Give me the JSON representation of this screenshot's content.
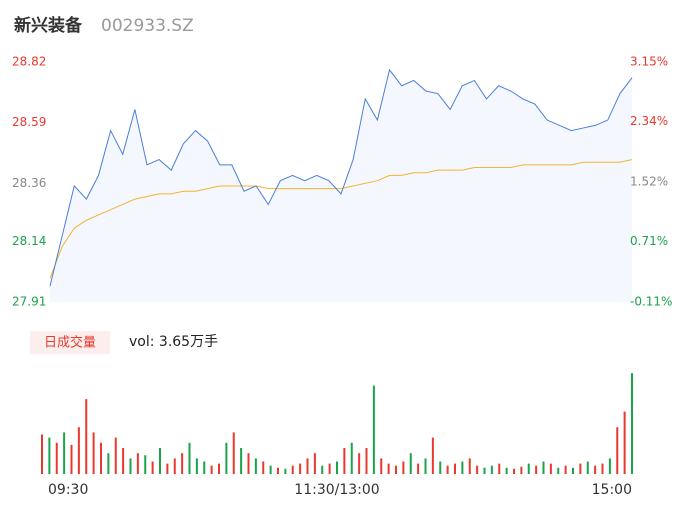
{
  "header": {
    "name": "新兴装备",
    "code": "002933.SZ"
  },
  "chart_data": [
    {
      "type": "line",
      "x": [
        0,
        5,
        10,
        15,
        20,
        25,
        30,
        35,
        40,
        45,
        50,
        55,
        60,
        65,
        70,
        75,
        80,
        85,
        90,
        95,
        100,
        105,
        110,
        115,
        120,
        125,
        130,
        135,
        140,
        145,
        150,
        155,
        160,
        165,
        170,
        175,
        180,
        185,
        190,
        195,
        200,
        205,
        210,
        215,
        220,
        225,
        230,
        235,
        240
      ],
      "series": [
        {
          "name": "price",
          "color": "#4a7fd8",
          "values": [
            27.97,
            28.16,
            28.35,
            28.3,
            28.39,
            28.56,
            28.47,
            28.64,
            28.43,
            28.45,
            28.41,
            28.51,
            28.56,
            28.52,
            28.43,
            28.43,
            28.33,
            28.35,
            28.28,
            28.37,
            28.39,
            28.37,
            28.39,
            28.37,
            28.32,
            28.45,
            28.68,
            28.6,
            28.79,
            28.73,
            28.75,
            28.71,
            28.7,
            28.64,
            28.73,
            28.75,
            28.68,
            28.73,
            28.71,
            28.68,
            28.66,
            28.6,
            28.58,
            28.56,
            28.57,
            28.58,
            28.6,
            28.7,
            28.76
          ]
        },
        {
          "name": "average",
          "color": "#f5b431",
          "values": [
            28.0,
            28.12,
            28.19,
            28.22,
            28.24,
            28.26,
            28.28,
            28.3,
            28.31,
            28.32,
            28.32,
            28.33,
            28.33,
            28.34,
            28.35,
            28.35,
            28.35,
            28.35,
            28.34,
            28.34,
            28.34,
            28.34,
            28.34,
            28.34,
            28.34,
            28.35,
            28.36,
            28.37,
            28.39,
            28.39,
            28.4,
            28.4,
            28.41,
            28.41,
            28.41,
            28.42,
            28.42,
            28.42,
            28.42,
            28.43,
            28.43,
            28.43,
            28.43,
            28.43,
            28.44,
            28.44,
            28.44,
            28.44,
            28.45
          ]
        }
      ],
      "xlim": [
        0,
        240
      ],
      "ylim": [
        27.91,
        28.82
      ],
      "yticks": [
        28.82,
        28.59,
        28.36,
        28.14,
        27.91
      ],
      "ytick_colors": [
        "#e8392e",
        "#e8392e",
        "#888888",
        "#1aa34a",
        "#1aa34a"
      ],
      "y2lim": [
        -0.11,
        3.15
      ],
      "y2ticks": [
        {
          "value": 3.15,
          "label": "3.15%"
        },
        {
          "value": 2.34,
          "label": "2.34%"
        },
        {
          "value": 1.52,
          "label": "1.52%"
        },
        {
          "value": 0.71,
          "label": "0.71%"
        },
        {
          "value": -0.11,
          "label": "-0.11%"
        }
      ],
      "area_color": "#f4f7fd"
    },
    {
      "type": "bar",
      "title": "日成交量",
      "subtitle": "vol: 3.65万手",
      "x": [
        0,
        3,
        6,
        9,
        12,
        15,
        18,
        21,
        24,
        27,
        30,
        33,
        36,
        39,
        42,
        45,
        48,
        51,
        54,
        57,
        60,
        63,
        66,
        69,
        72,
        75,
        78,
        81,
        84,
        87,
        90,
        93,
        96,
        99,
        102,
        105,
        108,
        111,
        114,
        117,
        120,
        123,
        126,
        129,
        132,
        135,
        138,
        141,
        144,
        147,
        150,
        153,
        156,
        159,
        162,
        165,
        168,
        171,
        174,
        177,
        180,
        183,
        186,
        189,
        192,
        195,
        198,
        201,
        204,
        207,
        210,
        213,
        216,
        219,
        222,
        225,
        228,
        231,
        234,
        237,
        240
      ],
      "values": [
        38,
        35,
        30,
        40,
        28,
        45,
        72,
        40,
        30,
        20,
        35,
        25,
        15,
        20,
        18,
        12,
        25,
        10,
        15,
        20,
        30,
        15,
        12,
        8,
        10,
        30,
        40,
        25,
        20,
        15,
        12,
        8,
        6,
        5,
        8,
        10,
        15,
        20,
        8,
        10,
        12,
        25,
        30,
        20,
        25,
        85,
        15,
        10,
        8,
        12,
        20,
        10,
        15,
        35,
        12,
        8,
        10,
        12,
        15,
        8,
        6,
        8,
        10,
        6,
        5,
        7,
        10,
        8,
        12,
        10,
        6,
        8,
        6,
        10,
        12,
        8,
        10,
        15,
        45,
        60,
        97
      ],
      "colors": [
        "#e8392e",
        "#1aa34a",
        "#e8392e",
        "#1aa34a",
        "#e8392e",
        "#e8392e",
        "#e8392e",
        "#e8392e",
        "#e8392e",
        "#1aa34a",
        "#e8392e",
        "#e8392e",
        "#1aa34a",
        "#e8392e",
        "#1aa34a",
        "#e8392e",
        "#1aa34a",
        "#e8392e",
        "#e8392e",
        "#e8392e",
        "#1aa34a",
        "#1aa34a",
        "#1aa34a",
        "#e8392e",
        "#e8392e",
        "#1aa34a",
        "#e8392e",
        "#1aa34a",
        "#e8392e",
        "#1aa34a",
        "#e8392e",
        "#1aa34a",
        "#e8392e",
        "#1aa34a",
        "#e8392e",
        "#e8392e",
        "#e8392e",
        "#e8392e",
        "#1aa34a",
        "#e8392e",
        "#1aa34a",
        "#e8392e",
        "#1aa34a",
        "#e8392e",
        "#e8392e",
        "#1aa34a",
        "#e8392e",
        "#e8392e",
        "#e8392e",
        "#e8392e",
        "#1aa34a",
        "#e8392e",
        "#1aa34a",
        "#e8392e",
        "#1aa34a",
        "#e8392e",
        "#e8392e",
        "#1aa34a",
        "#e8392e",
        "#e8392e",
        "#1aa34a",
        "#1aa34a",
        "#e8392e",
        "#1aa34a",
        "#e8392e",
        "#e8392e",
        "#1aa34a",
        "#e8392e",
        "#1aa34a",
        "#e8392e",
        "#1aa34a",
        "#e8392e",
        "#1aa34a",
        "#e8392e",
        "#1aa34a",
        "#e8392e",
        "#e8392e",
        "#1aa34a",
        "#e8392e",
        "#e8392e",
        "#1aa34a"
      ],
      "xlim": [
        0,
        240
      ],
      "ylim": [
        0,
        100
      ],
      "xticks": [
        {
          "value": 0,
          "label": "09:30"
        },
        {
          "value": 120,
          "label": "11:30/13:00"
        },
        {
          "value": 240,
          "label": "15:00"
        }
      ]
    }
  ]
}
